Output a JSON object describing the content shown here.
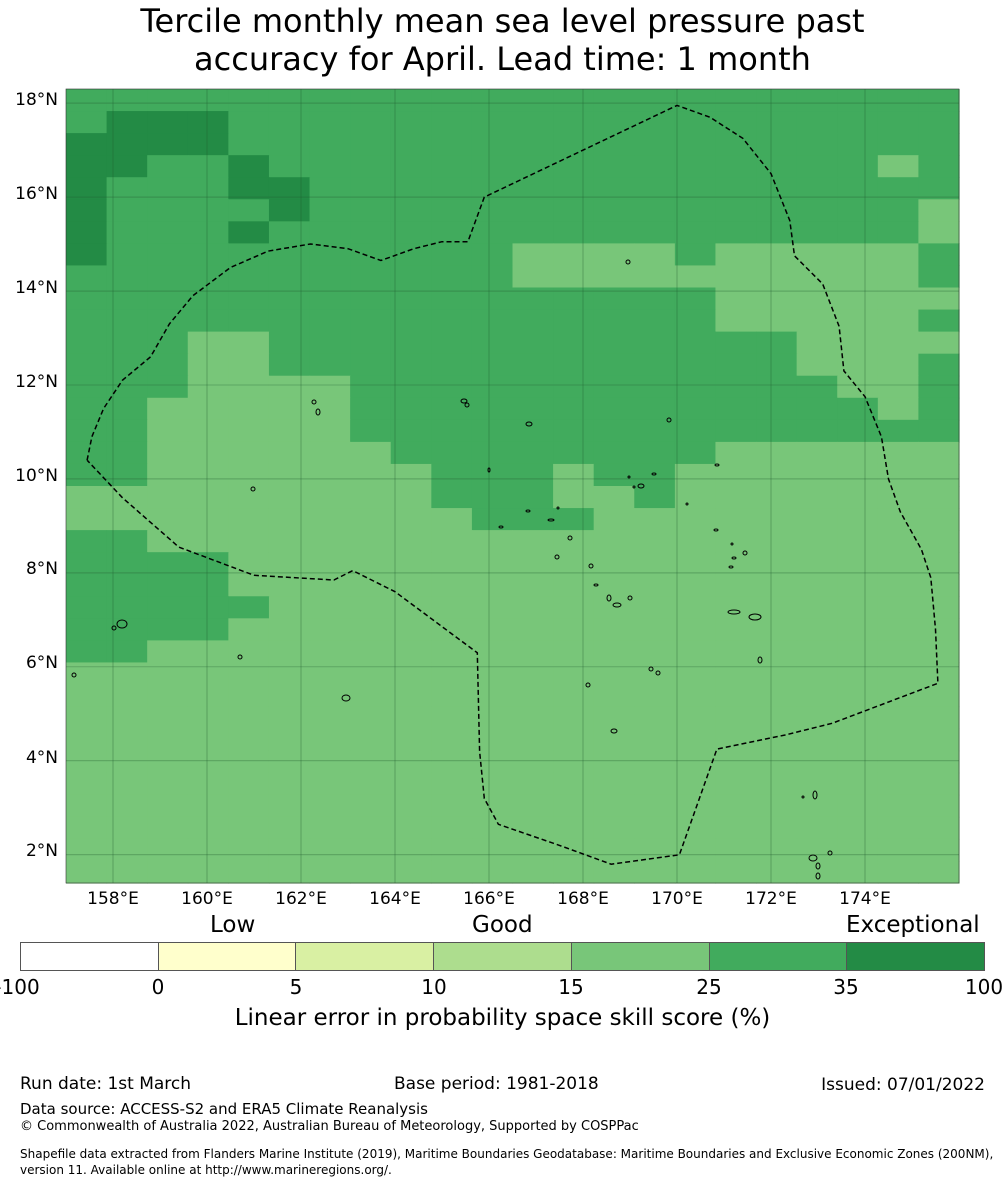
{
  "title": {
    "line1": "Tercile monthly mean sea level pressure past",
    "line2": "accuracy for April. Lead time: 1 month"
  },
  "map": {
    "lon_range": [
      157.0,
      176.0
    ],
    "lat_range": [
      1.4,
      18.3
    ],
    "cell_size_deg": 0.833,
    "grid_spacing_deg": 2,
    "x_ticks": [
      "158°E",
      "160°E",
      "162°E",
      "164°E",
      "166°E",
      "168°E",
      "170°E",
      "172°E",
      "174°E"
    ],
    "y_ticks": [
      "18°N",
      "16°N",
      "14°N",
      "12°N",
      "10°N",
      "8°N",
      "6°N",
      "4°N",
      "2°N"
    ],
    "region_boundary_lonlat": [
      [
        157.45,
        10.4
      ],
      [
        157.55,
        10.9
      ],
      [
        157.8,
        11.5
      ],
      [
        158.2,
        12.1
      ],
      [
        158.8,
        12.6
      ],
      [
        159.2,
        13.3
      ],
      [
        159.7,
        13.9
      ],
      [
        160.5,
        14.5
      ],
      [
        161.3,
        14.85
      ],
      [
        162.2,
        15.0
      ],
      [
        163.0,
        14.9
      ],
      [
        163.7,
        14.65
      ],
      [
        164.4,
        14.9
      ],
      [
        165.0,
        15.05
      ],
      [
        165.55,
        15.05
      ],
      [
        165.9,
        16.0
      ],
      [
        170.0,
        17.95
      ],
      [
        170.7,
        17.7
      ],
      [
        171.4,
        17.25
      ],
      [
        172.0,
        16.5
      ],
      [
        172.4,
        15.5
      ],
      [
        172.5,
        14.75
      ],
      [
        173.1,
        14.15
      ],
      [
        173.45,
        13.25
      ],
      [
        173.55,
        12.3
      ],
      [
        174.0,
        11.75
      ],
      [
        174.35,
        10.9
      ],
      [
        174.5,
        10.0
      ],
      [
        174.75,
        9.3
      ],
      [
        175.2,
        8.5
      ],
      [
        175.4,
        7.9
      ],
      [
        175.5,
        6.8
      ],
      [
        175.55,
        5.65
      ],
      [
        173.3,
        4.8
      ],
      [
        172.3,
        4.55
      ],
      [
        170.85,
        4.25
      ],
      [
        170.05,
        2.0
      ],
      [
        168.6,
        1.8
      ],
      [
        167.5,
        2.2
      ],
      [
        166.2,
        2.65
      ],
      [
        165.9,
        3.2
      ],
      [
        165.8,
        4.2
      ],
      [
        165.75,
        6.3
      ],
      [
        164.0,
        7.6
      ],
      [
        163.1,
        8.05
      ],
      [
        162.7,
        7.85
      ],
      [
        161.0,
        7.95
      ],
      [
        159.4,
        8.55
      ],
      [
        158.2,
        9.6
      ],
      [
        157.45,
        10.4
      ]
    ],
    "colors": {
      "exceptional": "#238b45",
      "above_25": "#41ab5d",
      "above_15": "#78c679",
      "boundary": "#000000"
    },
    "grid_codes_note_rows": "rows north to south, columns west to east, 3=35-100, 2=25-35, 1=15-25",
    "grid": [
      "2222222222222222222222",
      "2333222222222222222222",
      "3333222222222222222222",
      "3322322222222222222212",
      "3222332222222222222222",
      "3222232222222222222221",
      "3222322222222222222221",
      "3222222222211112111112",
      "2222222222211111111112",
      "2222222222222222111111",
      "2222222222222222111112",
      "2221122222222222221111",
      "2221122222222222221112",
      "2221111222222222222112",
      "2211111222222222222212",
      "2211111222222222222222",
      "2211111122222222111111",
      "2211111112221221111111",
      "1111111112221121111111",
      "1111111111222111111111",
      "2211111111111111111111",
      "2222111111111111111111",
      "2222111111111111111111",
      "2222211111111111111111",
      "2222111111111111111111",
      "2211111111111111111111",
      "1111111111111111111111",
      "1111111111111111111111",
      "1111111111111111111111",
      "1111111111111111111111",
      "1111111111111111111111",
      "1111111111111111111111",
      "1111111111111111111111",
      "1111111111111111111111",
      "1111111111111111111111",
      "1111111111111111111111"
    ]
  },
  "colorbar": {
    "category_labels": [
      "Low",
      "Good",
      "Exceptional"
    ],
    "segments": [
      "#ffffff",
      "#ffffcc",
      "#d9f0a3",
      "#addd8e",
      "#78c679",
      "#41ab5d",
      "#238b45"
    ],
    "tick_labels": [
      "-100",
      "0",
      "5",
      "10",
      "15",
      "25",
      "35",
      "100"
    ],
    "title": "Linear error in probability space skill score (%)"
  },
  "footer": {
    "run_date": "Run date: 1st March",
    "base_period": "Base period: 1981-2018",
    "issued": "Issued: 07/01/2022",
    "data_source": "Data source: ACCESS-S2 and ERA5 Climate Reanalysis",
    "copyright": "© Commonwealth of Australia 2022, Australian Bureau of Meteorology, Supported by COSPPac",
    "shapefile": "Shapefile data extracted from Flanders Marine Institute (2019), Maritime Boundaries Geodatabase: Maritime Boundaries and Exclusive Economic Zones (200NM), version 11. Available online at http://www.marineregions.org/."
  }
}
